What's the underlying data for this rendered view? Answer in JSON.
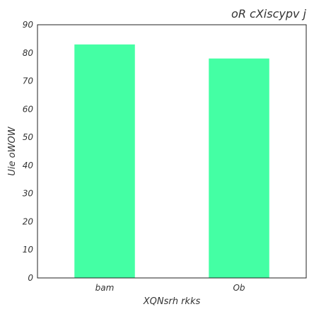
{
  "chart_data": {
    "type": "bar",
    "title": "oR cXiscypv j",
    "xlabel": "XQNsrh rkks",
    "ylabel": "Uie oWOW",
    "categories": [
      "bam",
      "Ob"
    ],
    "values": [
      83,
      78
    ],
    "ylim": [
      0,
      90
    ],
    "yticks": [
      0,
      10,
      20,
      30,
      40,
      50,
      60,
      70,
      80,
      90
    ],
    "grid": false,
    "bar_color": "#44ffa4",
    "axis_color": "#222222",
    "text_color": "#333333"
  }
}
